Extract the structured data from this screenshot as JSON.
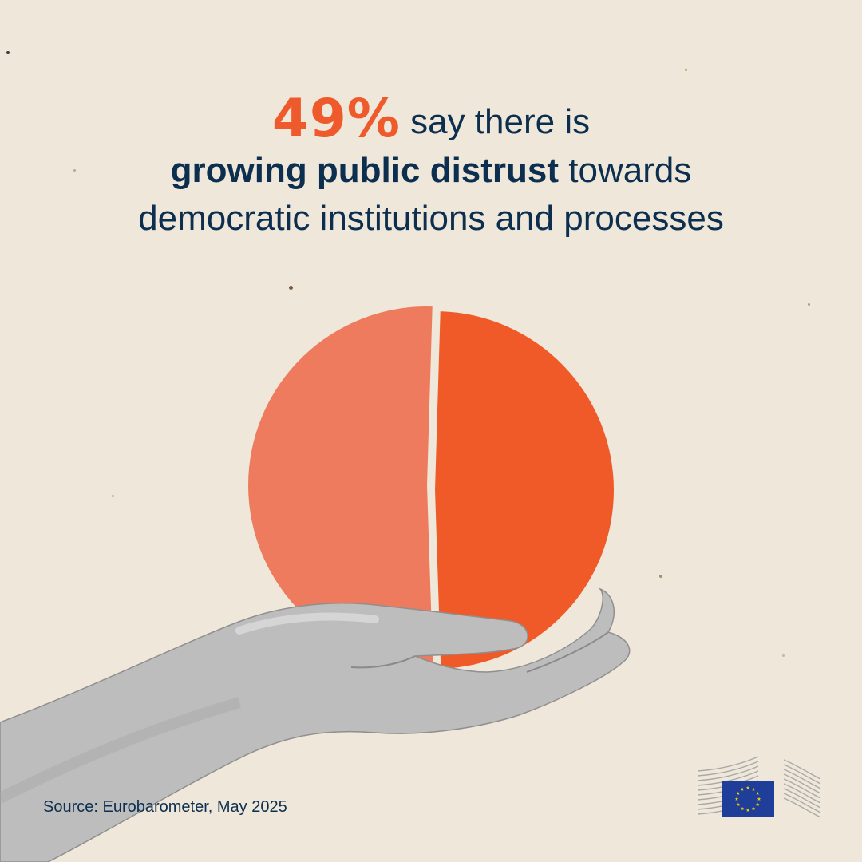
{
  "headline": {
    "highlight": "49%",
    "line1_rest": "say there is",
    "line2_bold": "growing public distrust",
    "line2_rest": "towards",
    "line3": "democratic institutions and processes"
  },
  "chart_data": {
    "type": "pie",
    "labels": [
      "",
      ""
    ],
    "values": [
      49,
      51
    ],
    "colors": [
      "#f05a28",
      "#ee7b5e"
    ]
  },
  "source": "Source: Eurobarometer, May 2025",
  "colors": {
    "background": "#efe7d9",
    "text": "#0d2f4f",
    "accent": "#ee5a2b",
    "eu_blue": "#1f3e9a",
    "eu_star": "#f5d000"
  },
  "icons": {
    "hand": "hand-icon",
    "logo": "european-commission-logo"
  }
}
